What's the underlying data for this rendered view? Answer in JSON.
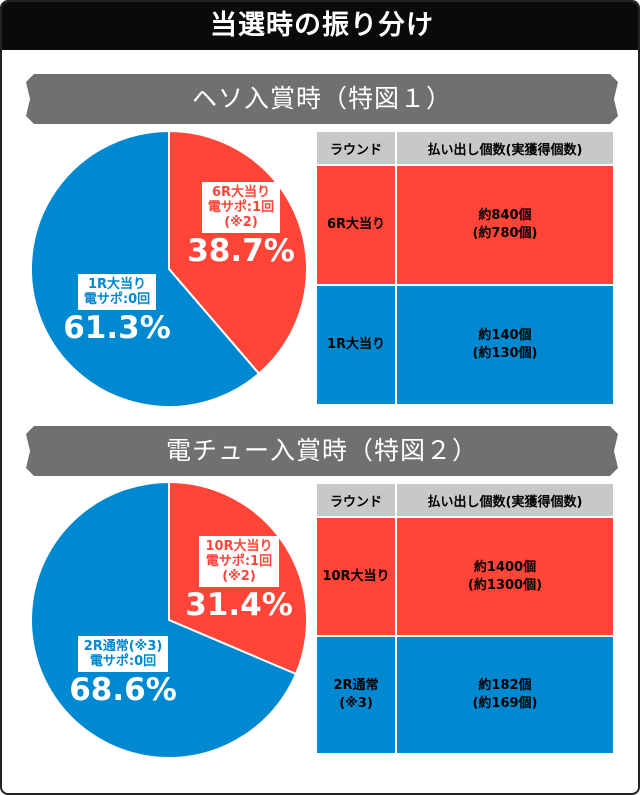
{
  "title": "当選時の振り分け",
  "colors": {
    "red": "#ff4438",
    "blue": "#0088d0"
  },
  "chart_data": [
    {
      "type": "pie",
      "title": "ヘソ入賞時（特図１）",
      "slices": [
        {
          "label": "6R大当り",
          "sub": "電サポ:1回",
          "note": "(※2)",
          "value": 38.7,
          "display": "38.7%",
          "color": "#ff4438"
        },
        {
          "label": "1R大当り",
          "sub": "電サポ:0回",
          "note": "",
          "value": 61.3,
          "display": "61.3%",
          "color": "#0088d0"
        }
      ],
      "table": {
        "headers": [
          "ラウンド",
          "払い出し個数(実獲得個数)"
        ],
        "rows": [
          {
            "round": "6R大当り",
            "round2": "",
            "payout": "約840個",
            "actual": "(約780個)"
          },
          {
            "round": "1R大当り",
            "round2": "",
            "payout": "約140個",
            "actual": "(約130個)"
          }
        ]
      }
    },
    {
      "type": "pie",
      "title": "電チュー入賞時（特図２）",
      "slices": [
        {
          "label": "10R大当り",
          "sub": "電サポ:1回",
          "note": "(※2)",
          "value": 31.4,
          "display": "31.4%",
          "color": "#ff4438"
        },
        {
          "label": "2R通常(※3)",
          "sub": "電サポ:0回",
          "note": "",
          "value": 68.6,
          "display": "68.6%",
          "color": "#0088d0"
        }
      ],
      "table": {
        "headers": [
          "ラウンド",
          "払い出し個数(実獲得個数)"
        ],
        "rows": [
          {
            "round": "10R大当り",
            "round2": "",
            "payout": "約1400個",
            "actual": "(約1300個)"
          },
          {
            "round": "2R通常",
            "round2": "(※3)",
            "payout": "約182個",
            "actual": "(約169個)"
          }
        ]
      }
    }
  ]
}
